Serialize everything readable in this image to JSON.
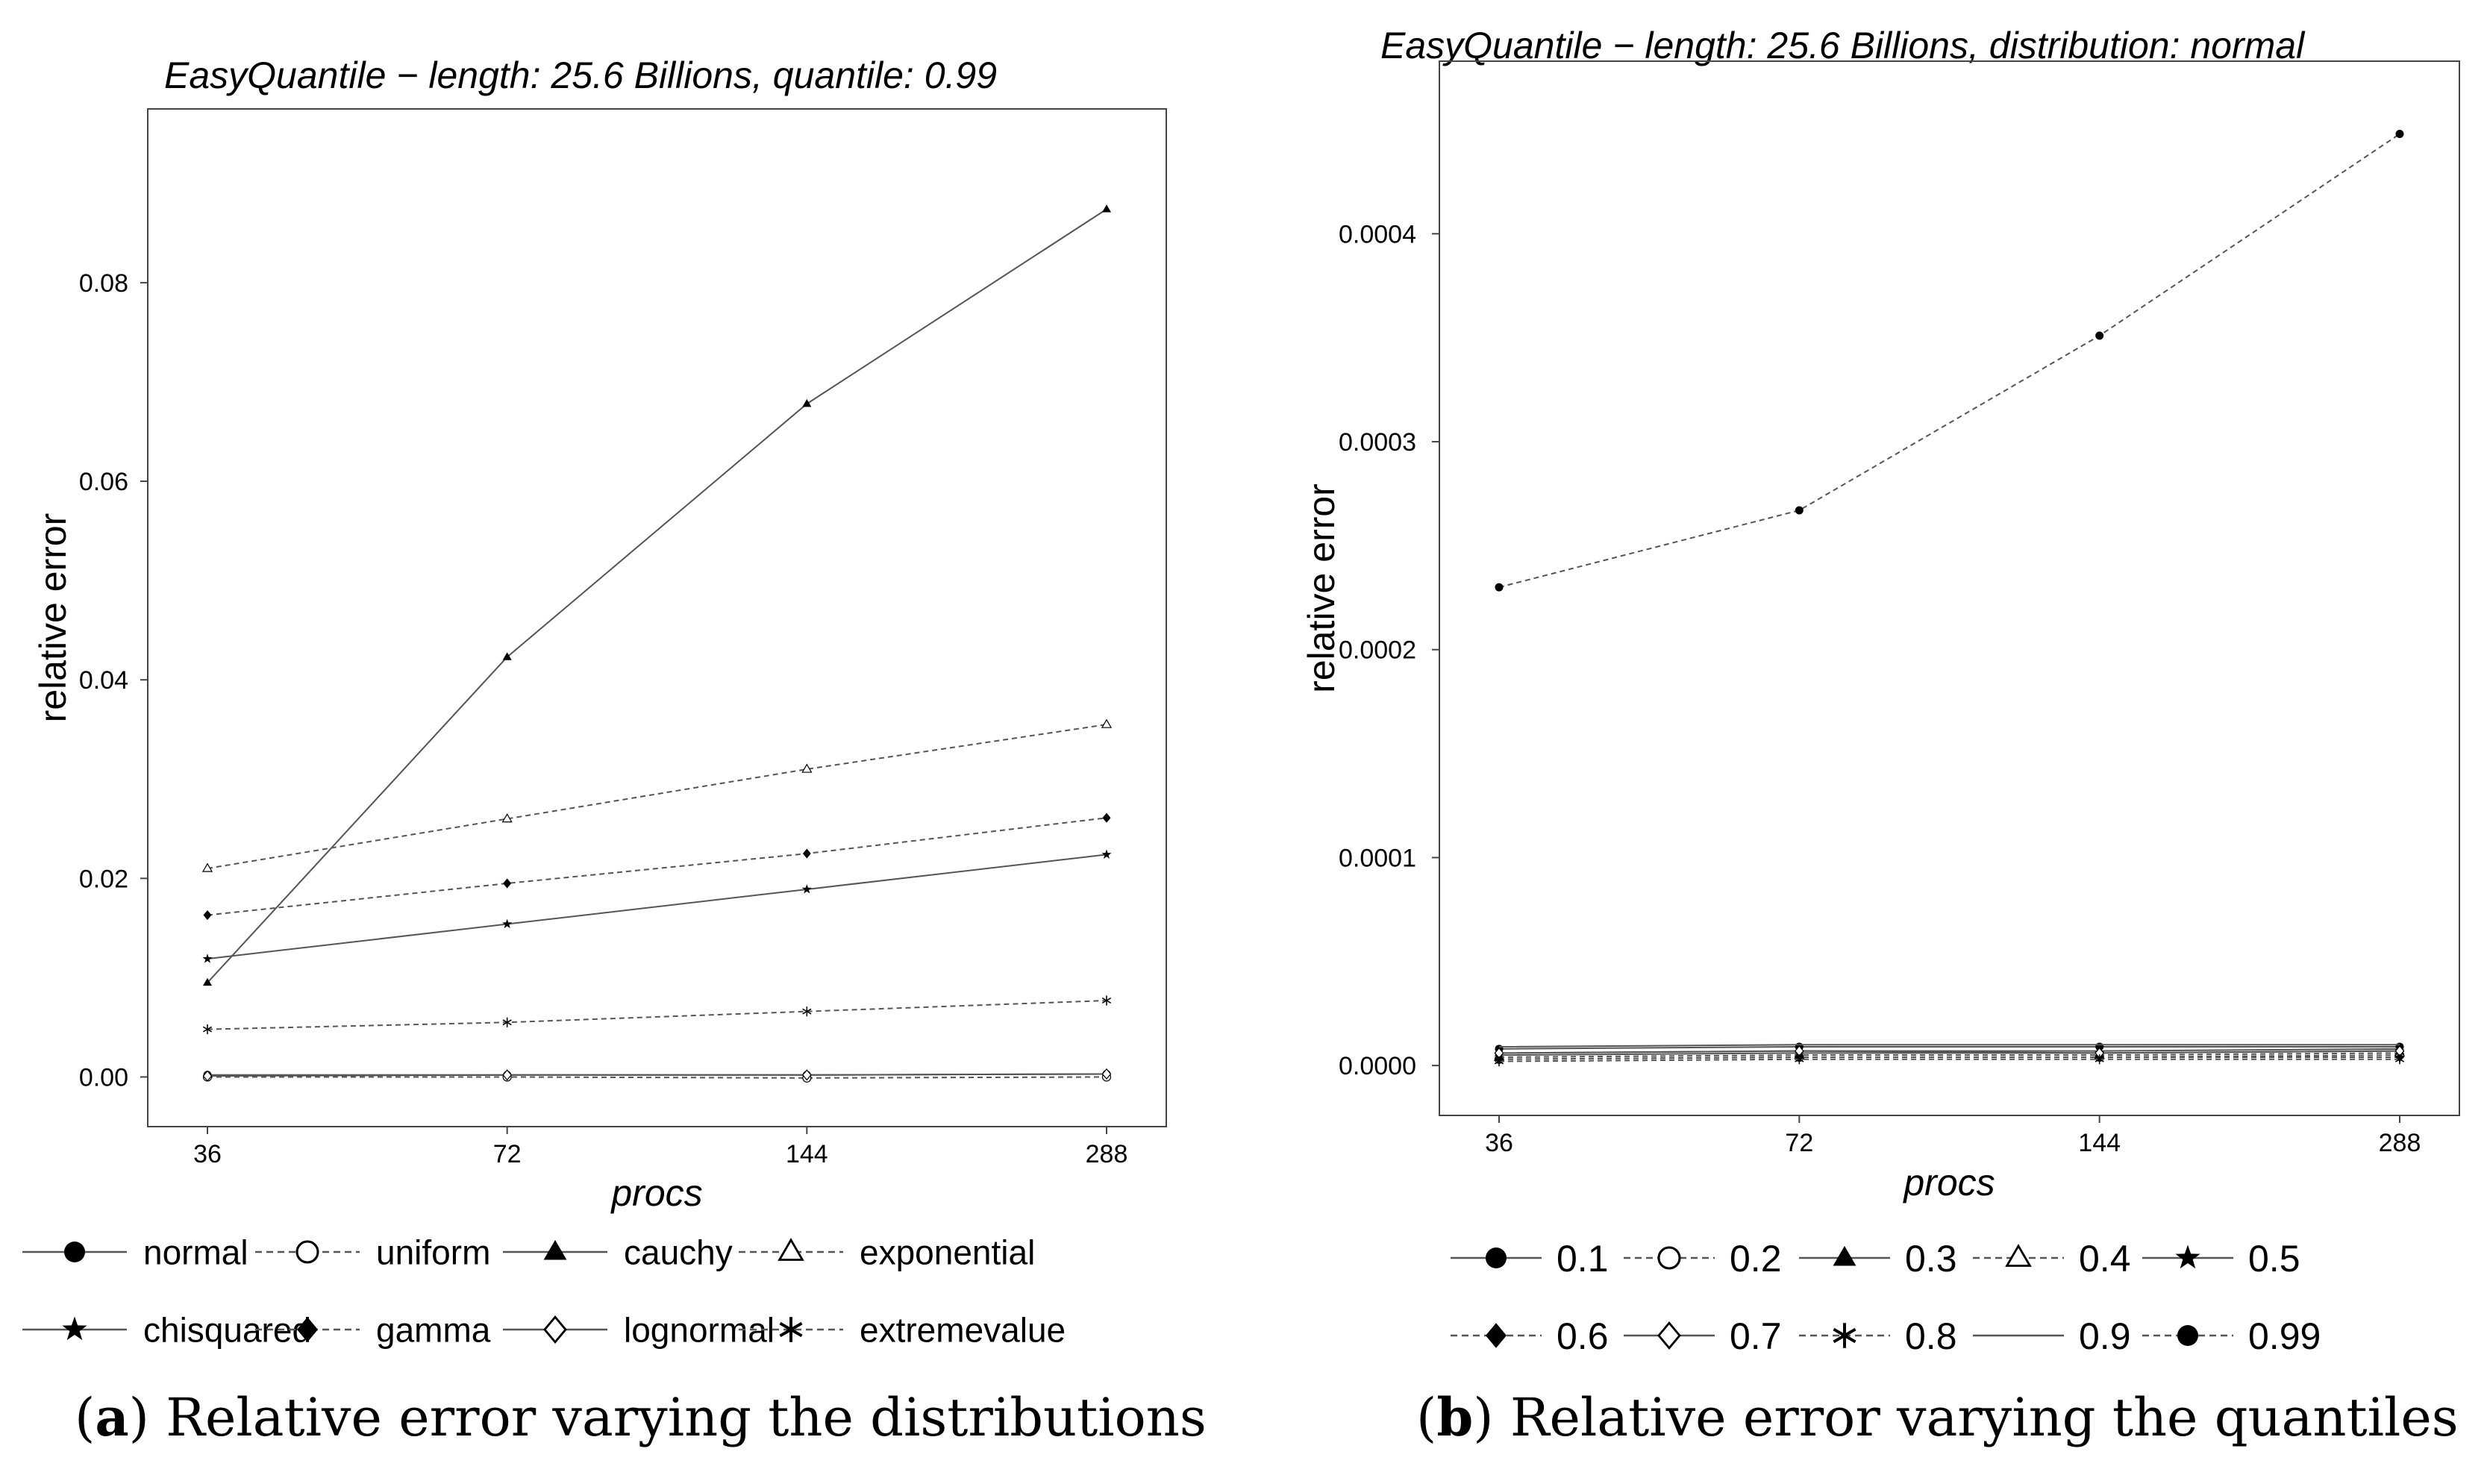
{
  "colors": {
    "line": "#555555",
    "marker": "#000000",
    "axis": "#444444",
    "text": "#000000"
  },
  "panels": [
    {
      "caption": {
        "letter": "a",
        "text": "Relative error varying the distributions"
      },
      "legend_label": "legend-a"
    },
    {
      "caption": {
        "letter": "b",
        "text": "Relative error varying the quantiles"
      },
      "legend_label": "legend-b"
    }
  ],
  "chart_data": [
    {
      "type": "line",
      "title": "EasyQuantile − length: 25.6 Billions, quantile: 0.99",
      "xlabel": "procs",
      "ylabel": "relative error",
      "x": [
        36,
        72,
        144,
        288
      ],
      "x_tick_labels": [
        "36",
        "72",
        "144",
        "288"
      ],
      "y_ticks": [
        0,
        0.02,
        0.04,
        0.06,
        0.08
      ],
      "y_tick_labels": [
        "0.00",
        "0.02",
        "0.04",
        "0.06",
        "0.08"
      ],
      "ylim": [
        -0.005,
        0.0975
      ],
      "x_scale": "log2",
      "grid": false,
      "legend_position": "bottom",
      "series": [
        {
          "name": "normal",
          "marker": "filled-circle",
          "dash": "solid",
          "values": [
            0.0002,
            0.0002,
            0.0002,
            0.0003
          ]
        },
        {
          "name": "uniform",
          "marker": "open-circle",
          "dash": "dashed",
          "values": [
            0.0,
            0.0,
            -0.0001,
            0.0
          ]
        },
        {
          "name": "cauchy",
          "marker": "filled-triangle",
          "dash": "solid",
          "values": [
            0.0095,
            0.0423,
            0.0678,
            0.0874
          ]
        },
        {
          "name": "exponential",
          "marker": "open-triangle",
          "dash": "dashed",
          "values": [
            0.021,
            0.026,
            0.031,
            0.0355
          ]
        },
        {
          "name": "chisquared",
          "marker": "star",
          "dash": "solid",
          "values": [
            0.0119,
            0.0154,
            0.0189,
            0.0224
          ]
        },
        {
          "name": "gamma",
          "marker": "filled-diamond",
          "dash": "dashed",
          "values": [
            0.0163,
            0.0195,
            0.0225,
            0.0261
          ]
        },
        {
          "name": "lognormal",
          "marker": "open-diamond",
          "dash": "solid",
          "values": [
            0.0001,
            0.0002,
            0.0002,
            0.0003
          ]
        },
        {
          "name": "extremevalue",
          "marker": "asterisk",
          "dash": "dashed",
          "values": [
            0.0048,
            0.0055,
            0.0066,
            0.0077
          ]
        }
      ]
    },
    {
      "type": "line",
      "title": "EasyQuantile − length: 25.6 Billions, distribution: normal",
      "xlabel": "procs",
      "ylabel": "relative error",
      "x": [
        36,
        72,
        144,
        288
      ],
      "x_tick_labels": [
        "36",
        "72",
        "144",
        "288"
      ],
      "y_ticks": [
        0,
        0.0001,
        0.0002,
        0.0003,
        0.0004
      ],
      "y_tick_labels": [
        "0.0000",
        "0.0001",
        "0.0002",
        "0.0003",
        "0.0004"
      ],
      "ylim": [
        -2.4e-05,
        0.000483
      ],
      "x_scale": "log2",
      "grid": false,
      "legend_position": "bottom",
      "series": [
        {
          "name": "0.1",
          "marker": "filled-circle",
          "dash": "solid",
          "values": [
            8e-06,
            9e-06,
            9e-06,
            9e-06
          ]
        },
        {
          "name": "0.2",
          "marker": "open-circle",
          "dash": "dashed",
          "values": [
            3e-06,
            4e-06,
            4e-06,
            5e-06
          ]
        },
        {
          "name": "0.3",
          "marker": "filled-triangle",
          "dash": "solid",
          "values": [
            6e-06,
            7e-06,
            7e-06,
            8e-06
          ]
        },
        {
          "name": "0.4",
          "marker": "open-triangle",
          "dash": "dashed",
          "values": [
            4e-06,
            5e-06,
            5e-06,
            6e-06
          ]
        },
        {
          "name": "0.5",
          "marker": "star",
          "dash": "solid",
          "values": [
            5e-06,
            6e-06,
            6e-06,
            7e-06
          ]
        },
        {
          "name": "0.6",
          "marker": "filled-diamond",
          "dash": "dashed",
          "values": [
            3e-06,
            4e-06,
            4e-06,
            4e-06
          ]
        },
        {
          "name": "0.7",
          "marker": "open-diamond",
          "dash": "solid",
          "values": [
            6e-06,
            7e-06,
            6e-06,
            7e-06
          ]
        },
        {
          "name": "0.8",
          "marker": "asterisk",
          "dash": "dashed",
          "values": [
            2e-06,
            3e-06,
            3e-06,
            3e-06
          ]
        },
        {
          "name": "0.9",
          "marker": "none",
          "dash": "solid",
          "values": [
            9e-06,
            1e-05,
            1e-05,
            1e-05
          ]
        },
        {
          "name": "0.99",
          "marker": "filled-circle",
          "dash": "dashed",
          "values": [
            0.00023,
            0.000267,
            0.000351,
            0.000448
          ]
        }
      ]
    }
  ]
}
